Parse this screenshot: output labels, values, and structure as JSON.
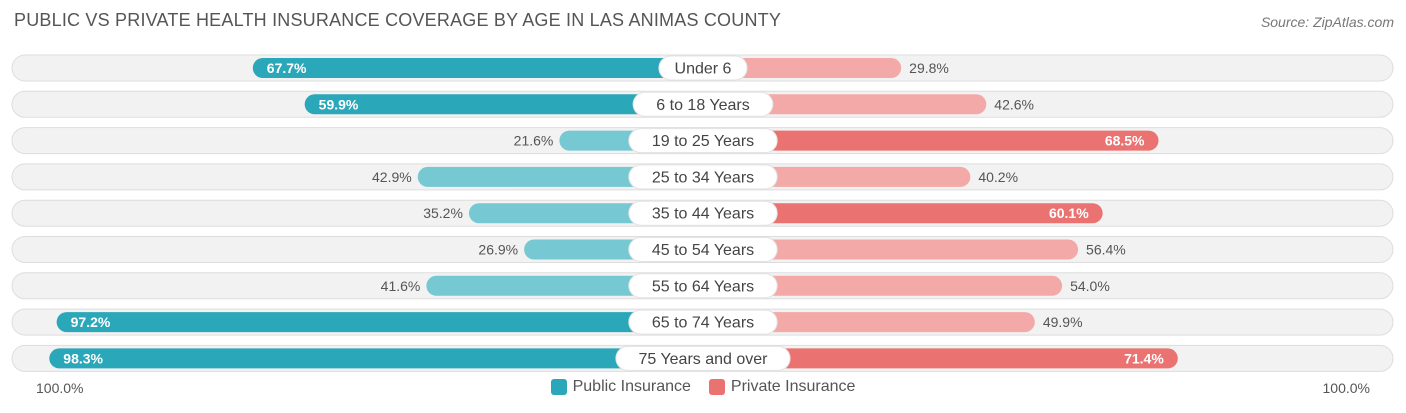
{
  "header": {
    "title": "PUBLIC VS PRIVATE HEALTH INSURANCE COVERAGE BY AGE IN LAS ANIMAS COUNTY",
    "source": "Source: ZipAtlas.com"
  },
  "axis": {
    "left_label": "100.0%",
    "right_label": "100.0%"
  },
  "legend": {
    "public_label": "Public Insurance",
    "private_label": "Private Insurance"
  },
  "colors": {
    "public_strong": "#2aa7b8",
    "public_light": "#76c8d2",
    "private_strong": "#ea7270",
    "private_light": "#f2a9a7",
    "row_bg": "#f2f2f2",
    "row_border": "#dddddd"
  },
  "chart_data": {
    "type": "bar",
    "title": "PUBLIC VS PRIVATE HEALTH INSURANCE COVERAGE BY AGE IN LAS ANIMAS COUNTY",
    "xlabel": "",
    "ylabel": "",
    "xlim": [
      0,
      100
    ],
    "categories": [
      "Under 6",
      "6 to 18 Years",
      "19 to 25 Years",
      "25 to 34 Years",
      "35 to 44 Years",
      "45 to 54 Years",
      "55 to 64 Years",
      "65 to 74 Years",
      "75 Years and over"
    ],
    "series": [
      {
        "name": "Public Insurance",
        "values": [
          67.7,
          59.9,
          21.6,
          42.9,
          35.2,
          26.9,
          41.6,
          97.2,
          98.3
        ],
        "labels": [
          "67.7%",
          "59.9%",
          "21.6%",
          "42.9%",
          "35.2%",
          "26.9%",
          "41.6%",
          "97.2%",
          "98.3%"
        ]
      },
      {
        "name": "Private Insurance",
        "values": [
          29.8,
          42.6,
          68.5,
          40.2,
          60.1,
          56.4,
          54.0,
          49.9,
          71.4
        ],
        "labels": [
          "29.8%",
          "42.6%",
          "68.5%",
          "40.2%",
          "60.1%",
          "56.4%",
          "54.0%",
          "49.9%",
          "71.4%"
        ]
      }
    ],
    "legend_position": "bottom-center"
  }
}
